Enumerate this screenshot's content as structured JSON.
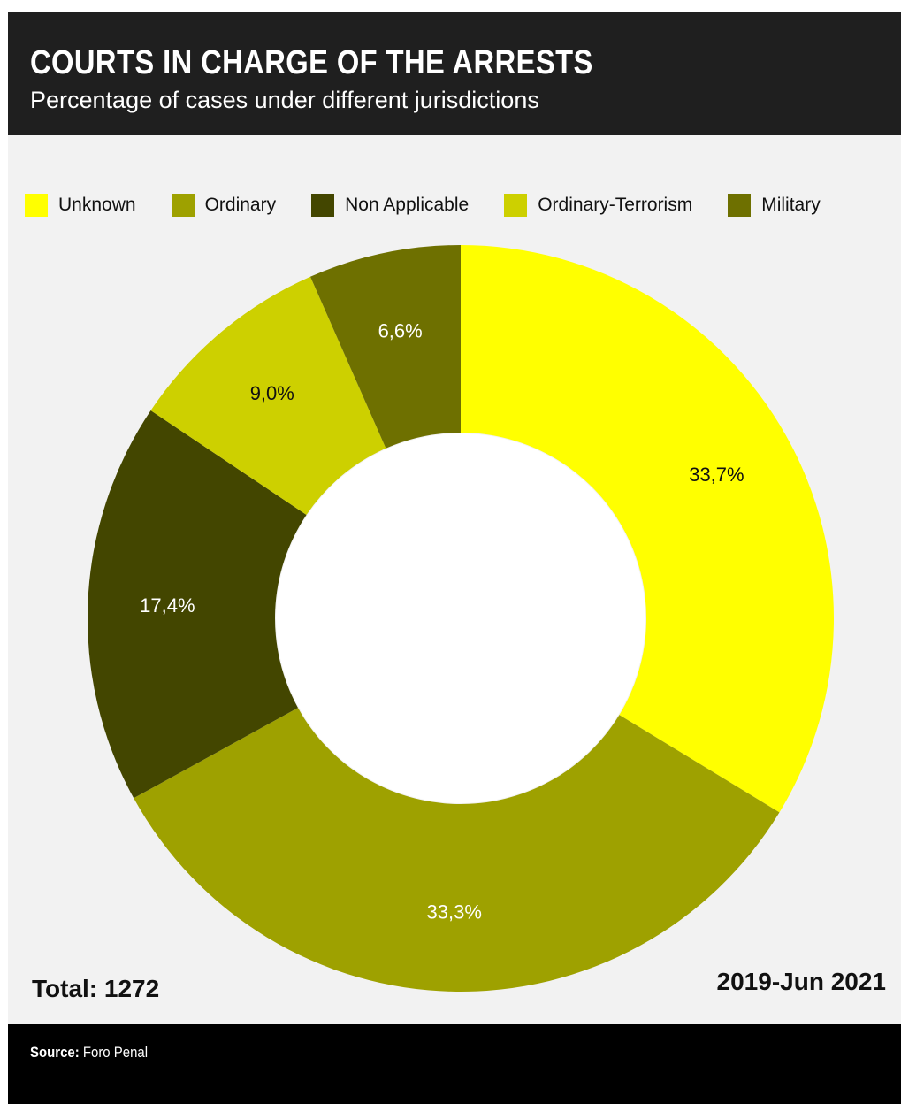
{
  "header": {
    "title": "COURTS IN CHARGE OF THE ARRESTS",
    "subtitle": "Percentage of cases under different jurisdictions"
  },
  "legend": [
    {
      "label": "Unknown",
      "color": "#ffff00"
    },
    {
      "label": "Ordinary",
      "color": "#9ea100"
    },
    {
      "label": "Non Applicable",
      "color": "#434600"
    },
    {
      "label": "Ordinary-Terrorism",
      "color": "#cdd000"
    },
    {
      "label": "Military",
      "color": "#6e7000"
    }
  ],
  "chart_data": {
    "type": "pie",
    "title": "COURTS IN CHARGE OF THE ARRESTS",
    "subtitle": "Percentage of cases under different jurisdictions",
    "donut": true,
    "legend_placement": "top",
    "categories": [
      "Unknown",
      "Ordinary",
      "Non Applicable",
      "Ordinary-Terrorism",
      "Military"
    ],
    "values": [
      33.7,
      33.3,
      17.4,
      9.0,
      6.6
    ],
    "labels": [
      "33,7%",
      "33,3%",
      "17,4%",
      "9,0%",
      "6,6%"
    ],
    "colors": [
      "#ffff00",
      "#9ea100",
      "#434600",
      "#cdd000",
      "#6e7000"
    ],
    "label_colors": [
      "#111111",
      "#ffffff",
      "#ffffff",
      "#111111",
      "#ffffff"
    ]
  },
  "footer": {
    "total": "Total: 1272",
    "period": "2019-Jun 2021",
    "source_key": "Source:",
    "source_value": "Foro Penal"
  }
}
